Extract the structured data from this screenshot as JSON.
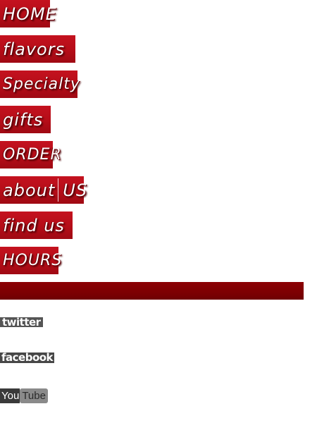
{
  "nav": {
    "items": [
      {
        "label": "HOME"
      },
      {
        "label": "flavors"
      },
      {
        "label": "Specialty"
      },
      {
        "label": "gifts"
      },
      {
        "label": "ORDER"
      },
      {
        "label": "about",
        "label2": "US"
      },
      {
        "label": "find us"
      },
      {
        "label": "HOURS"
      }
    ]
  },
  "social": {
    "twitter": "twitter",
    "facebook": "facebook",
    "youtube_you": "You",
    "youtube_tube": "Tube"
  },
  "colors": {
    "nav_red": "#c4121f",
    "bar_dark_red": "#7d0002",
    "social_gray": "#555555"
  }
}
